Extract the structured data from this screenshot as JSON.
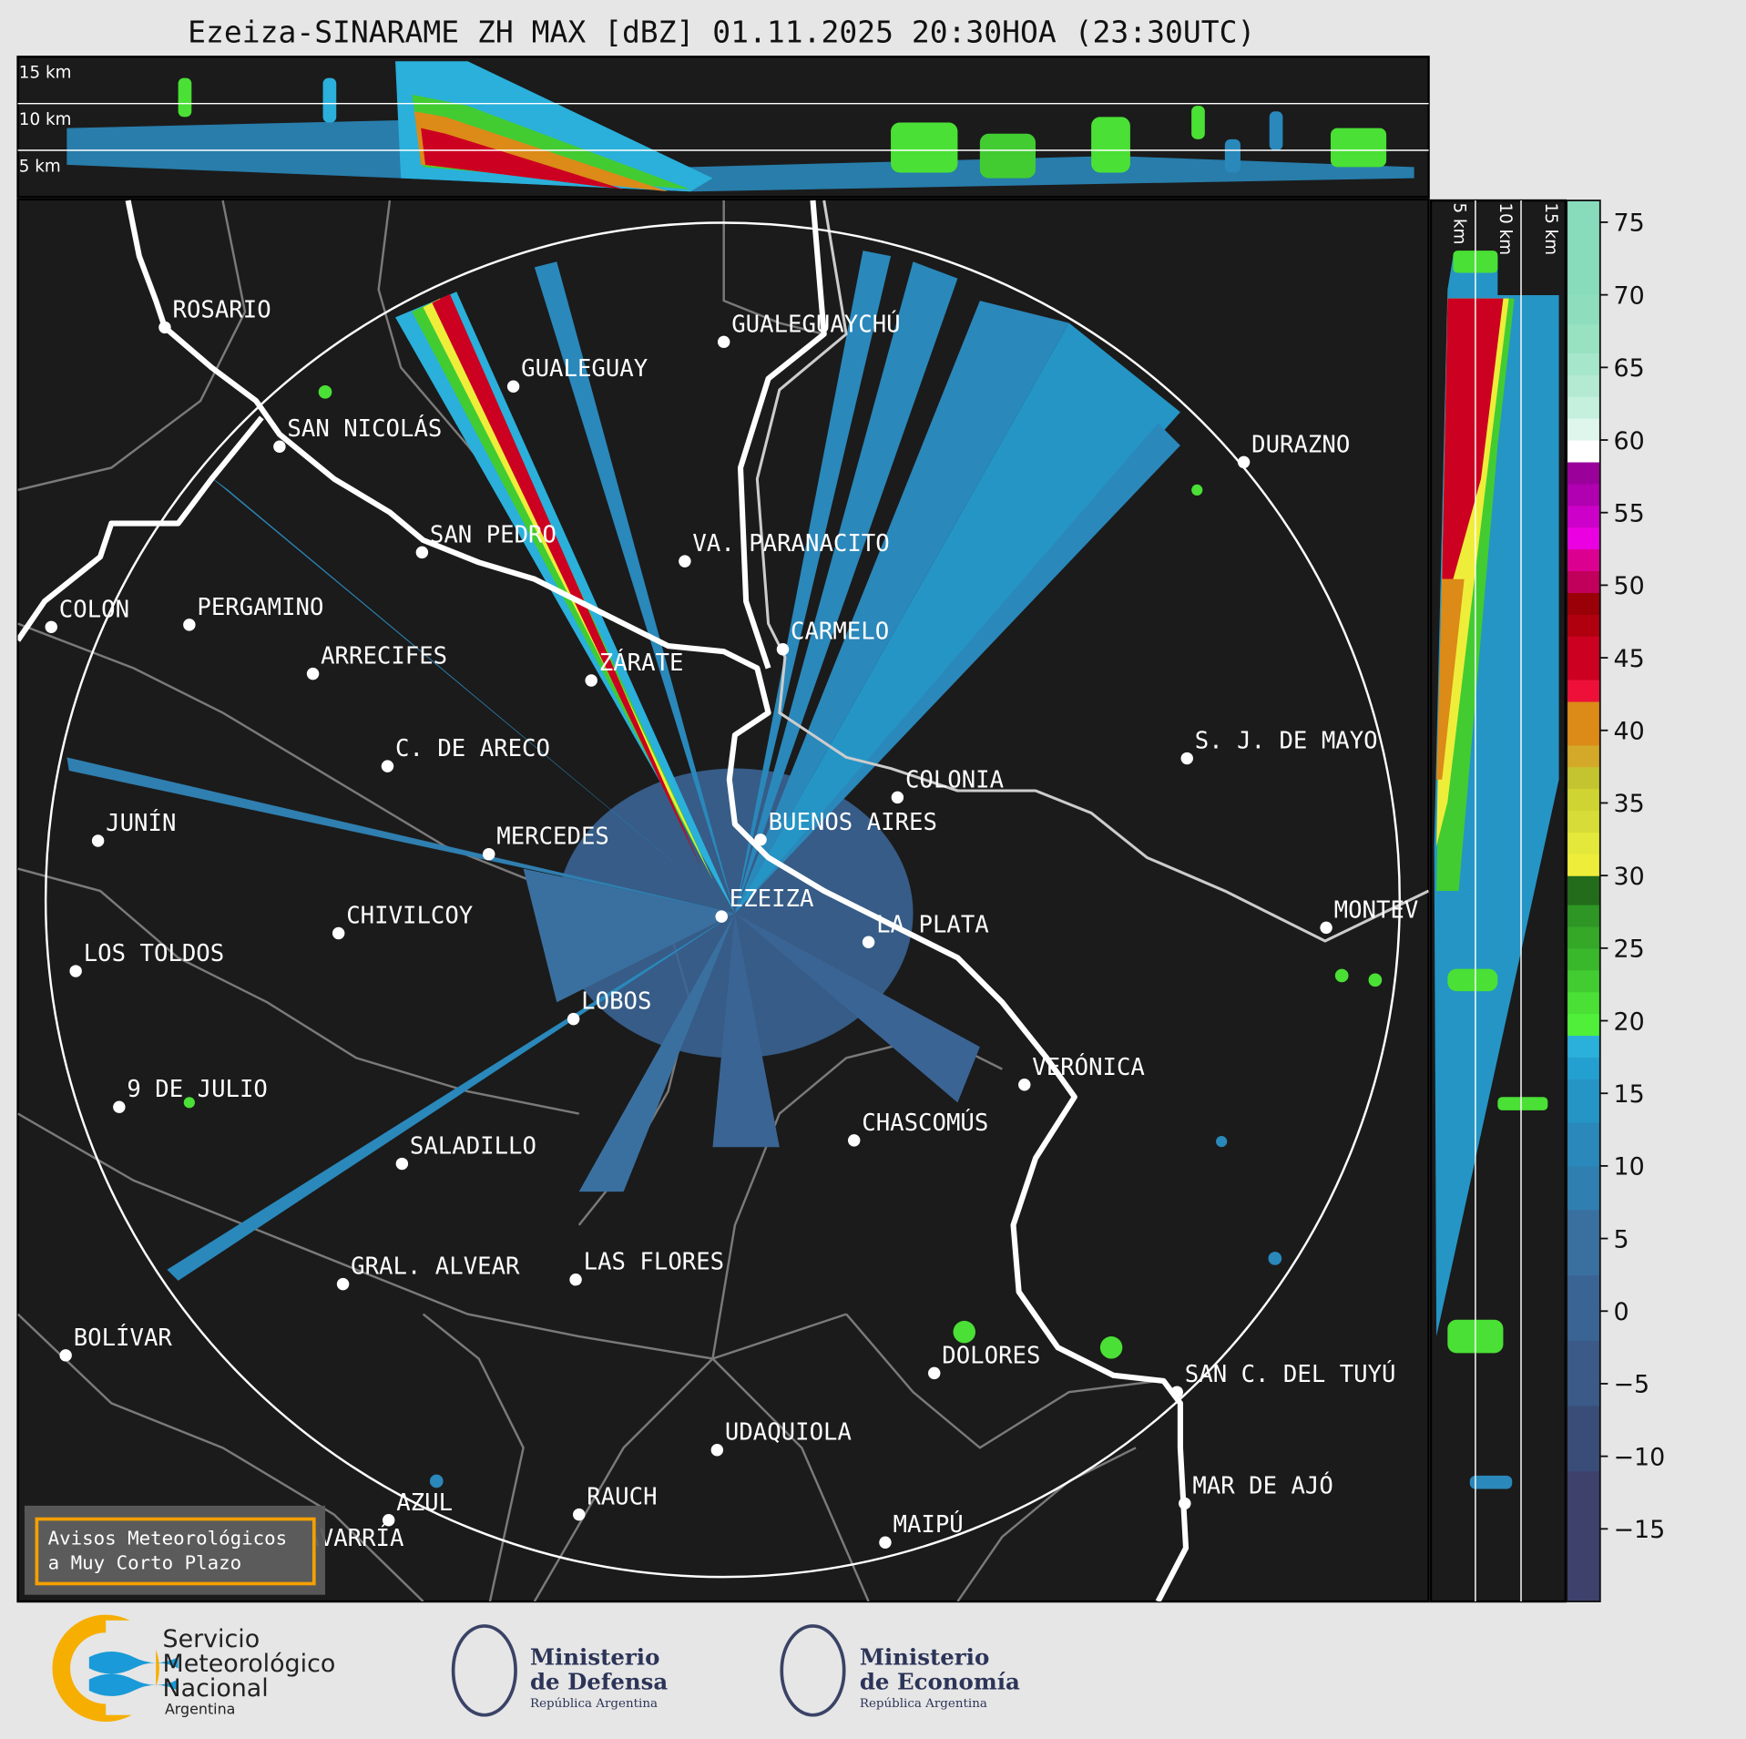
{
  "title": "Ezeiza-SINARAME ZH MAX [dBZ] 01.11.2025 20:30HOA (23:30UTC)",
  "top_panel": {
    "height_labels": [
      "15 km",
      "10 km",
      "5 km"
    ]
  },
  "right_panel": {
    "height_labels": [
      "5 km",
      "10 km",
      "15 km"
    ]
  },
  "colorbar": {
    "unit": "dBZ",
    "range": [
      -20,
      76.5
    ],
    "ticks": [
      "75",
      "70",
      "65",
      "60",
      "55",
      "50",
      "45",
      "40",
      "35",
      "30",
      "25",
      "20",
      "15",
      "10",
      "5",
      "0",
      "−5",
      "−10",
      "−15"
    ],
    "bins": [
      [
        -20,
        -11,
        "#3d416c"
      ],
      [
        -11,
        -6.5,
        "#3a4d78"
      ],
      [
        -6.5,
        -2,
        "#3b5a88"
      ],
      [
        -2,
        2.5,
        "#3a6494"
      ],
      [
        2.5,
        7,
        "#3a70a0"
      ],
      [
        7,
        10,
        "#2f7fb0"
      ],
      [
        10,
        13,
        "#2a88bb"
      ],
      [
        13,
        16,
        "#2595c5"
      ],
      [
        16,
        17.5,
        "#24a0d0"
      ],
      [
        17.5,
        19,
        "#2ab0da"
      ],
      [
        19,
        20.5,
        "#50f03a"
      ],
      [
        20.5,
        22,
        "#4ae035"
      ],
      [
        22,
        23.5,
        "#42cc32"
      ],
      [
        23.5,
        25,
        "#3ab82c"
      ],
      [
        25,
        26.5,
        "#35a828"
      ],
      [
        26.5,
        28,
        "#2e9624"
      ],
      [
        28,
        30,
        "#236c1c"
      ],
      [
        30,
        31.5,
        "#eeee3a"
      ],
      [
        31.5,
        33,
        "#e4e83a"
      ],
      [
        33,
        34.5,
        "#d8dc38"
      ],
      [
        34.5,
        36,
        "#d0d432"
      ],
      [
        36,
        37.5,
        "#c4c430"
      ],
      [
        37.5,
        39,
        "#d4a828"
      ],
      [
        39,
        42,
        "#dc8a18"
      ],
      [
        42,
        43.5,
        "#ee1038"
      ],
      [
        43.5,
        46.5,
        "#cc0020"
      ],
      [
        46.5,
        48,
        "#b00010"
      ],
      [
        48,
        49.5,
        "#9a0008"
      ],
      [
        49.5,
        51,
        "#c0005a"
      ],
      [
        51,
        52.5,
        "#dc0090"
      ],
      [
        52.5,
        54,
        "#ea00e0"
      ],
      [
        54,
        55.5,
        "#cc00c8"
      ],
      [
        55.5,
        57,
        "#b000b0"
      ],
      [
        57,
        58.5,
        "#9a009a"
      ],
      [
        58.5,
        60,
        "#ffffff"
      ],
      [
        60,
        61.5,
        "#dff6ec"
      ],
      [
        61.5,
        63,
        "#c6f0de"
      ],
      [
        63,
        64.5,
        "#b4ead2"
      ],
      [
        64.5,
        66,
        "#a6e6ca"
      ],
      [
        66,
        68,
        "#98e2c2"
      ],
      [
        68,
        70,
        "#8edebe"
      ],
      [
        70,
        76.5,
        "#88dcbc"
      ]
    ]
  },
  "map": {
    "background": "#1b1b1b",
    "radar_site": "EZEIZA",
    "cities": [
      "ROSARIO",
      "GUALEGUAY",
      "GUALEGUAYCHÚ",
      "SAN NICOLÁS",
      "DURAZNO",
      "SAN PEDRO",
      "VA. PARANACITO",
      "COLON",
      "PERGAMINO",
      "CARMELO",
      "ARRECIFES",
      "ZÁRATE",
      "C. DE ARECO",
      "S. J. DE MAYO",
      "COLONIA",
      "JUNÍN",
      "BUENOS AIRES",
      "MERCEDES",
      "EZEIZA",
      "MONTEV",
      "CHIVILCOY",
      "LA PLATA",
      "LOS TOLDOS",
      "LOBOS",
      "VERÓNICA",
      "9 DE JULIO",
      "CHASCOMÚS",
      "SALADILLO",
      "GRAL. ALVEAR",
      "LAS FLORES",
      "BOLÍVAR",
      "DOLORES",
      "SAN C. DEL TUYÚ",
      "UDAQUIOLA",
      "MAR DE AJÓ",
      "RAUCH",
      "AZUL",
      "MAIPÚ",
      "OLAVARRÍA"
    ]
  },
  "warning_box": {
    "line1": "Avisos Meteorológicos",
    "line2": "a Muy Corto Plazo",
    "border_color": "#f5a000"
  },
  "logos": {
    "smn": {
      "line1": "Servicio",
      "line2": "Meteorológico",
      "line3": "Nacional",
      "line4": "Argentina"
    },
    "defensa": {
      "line1": "Ministerio",
      "line2": "de Defensa",
      "line3": "República Argentina"
    },
    "economia": {
      "line1": "Ministerio",
      "line2": "de Economía",
      "line3": "República Argentina"
    }
  }
}
